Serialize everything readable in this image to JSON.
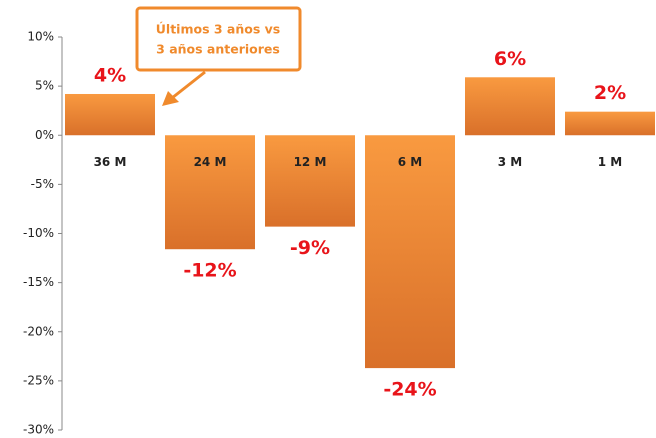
{
  "chart_data": {
    "type": "bar",
    "categories": [
      "36 M",
      "24 M",
      "12 M",
      "6 M",
      "3 M",
      "1 M"
    ],
    "values": [
      4.2,
      -11.6,
      -9.3,
      -23.7,
      5.9,
      2.4
    ],
    "value_labels": [
      "4%",
      "-12%",
      "-9%",
      "-24%",
      "6%",
      "2%"
    ],
    "color": "#f08a2c",
    "ylim": [
      -30,
      10
    ],
    "yticks": [
      {
        "value": 10,
        "label": "10%"
      },
      {
        "value": 5,
        "label": "5%"
      },
      {
        "value": 0,
        "label": "0%"
      },
      {
        "value": -5,
        "label": "-5%"
      },
      {
        "value": -10,
        "label": "-10%"
      },
      {
        "value": -15,
        "label": "-15%"
      },
      {
        "value": -20,
        "label": "-20%"
      },
      {
        "value": -25,
        "label": "-25%"
      },
      {
        "value": -30,
        "label": "-30%"
      }
    ],
    "annotation": [
      "Últimos 3 años vs",
      "3 años anteriores"
    ]
  }
}
